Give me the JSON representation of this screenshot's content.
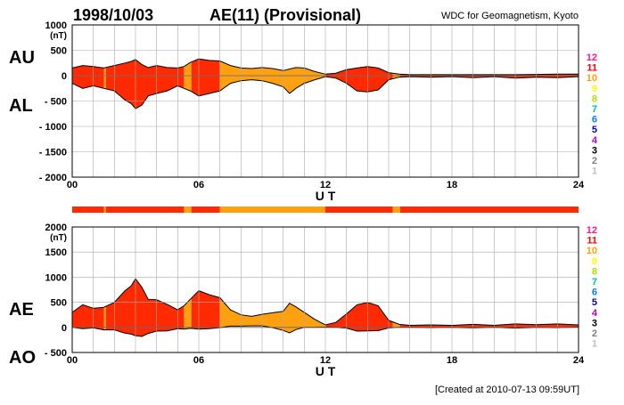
{
  "header": {
    "date": "1998/10/03",
    "title": "AE(11) (Provisional)",
    "source": "WDC for Geomagnetism, Kyoto"
  },
  "footer": {
    "created": "[Created at 2010-07-13 09:59UT]"
  },
  "palette": {
    "legend_numbers": [
      "12",
      "11",
      "10",
      "9",
      "8",
      "7",
      "6",
      "5",
      "4",
      "3",
      "2",
      "1"
    ],
    "legend_colors": [
      "#ff1493",
      "#ff0000",
      "#ffa500",
      "#ffff00",
      "#b0e000",
      "#00c0a0",
      "#0080ff",
      "#0000c0",
      "#c000c0",
      "#000000",
      "#808080",
      "#c0c0c0"
    ],
    "station_colors": {
      "11": "#ff2a00",
      "10": "#ffa010"
    }
  },
  "station_segments": [
    {
      "start": 0,
      "end": 1.5,
      "n": "11"
    },
    {
      "start": 1.5,
      "end": 1.6,
      "n": "10"
    },
    {
      "start": 1.6,
      "end": 5.3,
      "n": "11"
    },
    {
      "start": 5.3,
      "end": 5.65,
      "n": "10"
    },
    {
      "start": 5.65,
      "end": 7.0,
      "n": "11"
    },
    {
      "start": 7.0,
      "end": 12.0,
      "n": "10"
    },
    {
      "start": 12.0,
      "end": 15.2,
      "n": "11"
    },
    {
      "start": 15.2,
      "end": 15.55,
      "n": "10"
    },
    {
      "start": 15.55,
      "end": 24,
      "n": "11"
    }
  ],
  "chart_data": [
    {
      "type": "area",
      "id": "au_al",
      "series_labels": [
        "AU",
        "AL"
      ],
      "ylabel": "(nT)",
      "xlabel": "U T",
      "xlim": [
        0,
        24
      ],
      "ylim": [
        -2000,
        1000
      ],
      "x_ticks": [
        "00",
        "06",
        "12",
        "18",
        "24"
      ],
      "x_tick_values": [
        0,
        6,
        12,
        18,
        24
      ],
      "y_ticks": [
        "1000",
        "500",
        "0",
        "- 500",
        "- 1000",
        "- 1500",
        "- 2000"
      ],
      "y_tick_values": [
        1000,
        500,
        0,
        -500,
        -1000,
        -1500,
        -2000
      ],
      "grid": true,
      "x": [
        0,
        0.5,
        1,
        1.5,
        2,
        2.5,
        2.8,
        3,
        3.3,
        3.6,
        4,
        4.5,
        5,
        5.3,
        5.6,
        6,
        6.5,
        7,
        7.5,
        8,
        8.5,
        9,
        9.5,
        10,
        10.3,
        10.6,
        11,
        11.5,
        12,
        12.5,
        13,
        13.5,
        14,
        14.5,
        15,
        15.5,
        16,
        17,
        18,
        19,
        20,
        21,
        22,
        23,
        24
      ],
      "series": [
        {
          "name": "AU",
          "values": [
            150,
            200,
            180,
            150,
            200,
            250,
            280,
            320,
            220,
            160,
            200,
            160,
            150,
            180,
            260,
            330,
            300,
            290,
            200,
            150,
            140,
            160,
            140,
            100,
            130,
            160,
            150,
            80,
            30,
            50,
            120,
            150,
            180,
            150,
            60,
            30,
            20,
            20,
            20,
            20,
            20,
            20,
            25,
            30,
            30
          ]
        },
        {
          "name": "AL",
          "values": [
            -150,
            -250,
            -200,
            -250,
            -300,
            -480,
            -550,
            -650,
            -580,
            -400,
            -350,
            -300,
            -200,
            -250,
            -300,
            -400,
            -350,
            -300,
            -150,
            -100,
            -80,
            -100,
            -150,
            -220,
            -350,
            -250,
            -150,
            -80,
            -20,
            -50,
            -150,
            -300,
            -320,
            -280,
            -80,
            -30,
            -20,
            -30,
            -20,
            -40,
            -20,
            -50,
            -30,
            -40,
            -20
          ]
        }
      ]
    },
    {
      "type": "area",
      "id": "ae_ao",
      "series_labels": [
        "AE",
        "AO"
      ],
      "ylabel": "(nT)",
      "xlabel": "U T",
      "xlim": [
        0,
        24
      ],
      "ylim": [
        -500,
        2000
      ],
      "x_ticks": [
        "00",
        "06",
        "12",
        "18",
        "24"
      ],
      "x_tick_values": [
        0,
        6,
        12,
        18,
        24
      ],
      "y_ticks": [
        "2000",
        "1500",
        "1000",
        "500",
        "0",
        "- 500"
      ],
      "y_tick_values": [
        2000,
        1500,
        1000,
        500,
        0,
        -500
      ],
      "grid": true,
      "x": [
        0,
        0.5,
        1,
        1.5,
        2,
        2.5,
        2.8,
        3,
        3.3,
        3.6,
        4,
        4.5,
        5,
        5.3,
        5.6,
        6,
        6.5,
        7,
        7.5,
        8,
        8.5,
        9,
        9.5,
        10,
        10.3,
        10.6,
        11,
        11.5,
        12,
        12.5,
        13,
        13.5,
        14,
        14.5,
        15,
        15.5,
        16,
        17,
        18,
        19,
        20,
        21,
        22,
        23,
        24
      ],
      "series": [
        {
          "name": "AE",
          "values": [
            300,
            450,
            380,
            400,
            500,
            730,
            830,
            970,
            800,
            560,
            550,
            460,
            350,
            430,
            560,
            730,
            650,
            590,
            350,
            250,
            220,
            260,
            290,
            320,
            480,
            410,
            300,
            160,
            50,
            100,
            270,
            450,
            500,
            430,
            140,
            60,
            40,
            50,
            40,
            60,
            40,
            70,
            55,
            70,
            50
          ]
        },
        {
          "name": "AO",
          "values": [
            0,
            -25,
            -10,
            -50,
            -50,
            -115,
            -135,
            -165,
            -180,
            -120,
            -75,
            -70,
            -25,
            -35,
            -20,
            -35,
            -25,
            -5,
            25,
            25,
            30,
            30,
            -5,
            -60,
            -110,
            -45,
            0,
            0,
            5,
            0,
            -15,
            -75,
            -70,
            -65,
            -10,
            0,
            0,
            -5,
            0,
            -10,
            0,
            -15,
            -2,
            -5,
            5
          ]
        }
      ]
    }
  ]
}
